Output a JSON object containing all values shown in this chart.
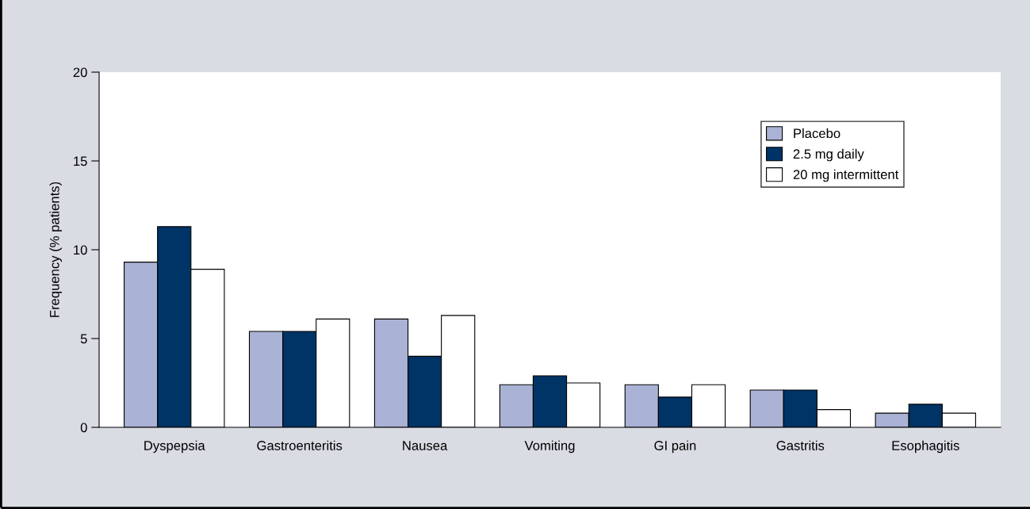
{
  "chart_data": {
    "type": "bar",
    "ylabel": "Frequency (% patients)",
    "categories": [
      "Dyspepsia",
      "Gastroenteritis",
      "Nausea",
      "Vomiting",
      "GI pain",
      "Gastritis",
      "Esophagitis"
    ],
    "series": [
      {
        "name": "Placebo",
        "color": "#aab3d5",
        "values": [
          9.3,
          5.4,
          6.1,
          2.4,
          2.4,
          2.1,
          0.8
        ]
      },
      {
        "name": "2.5 mg daily",
        "color": "#003366",
        "values": [
          11.3,
          5.4,
          4.0,
          2.9,
          1.7,
          2.1,
          1.3
        ]
      },
      {
        "name": "20 mg intermittent",
        "color": "#ffffff",
        "values": [
          8.9,
          6.1,
          6.3,
          2.5,
          2.4,
          1.0,
          0.8
        ]
      }
    ],
    "ylim": [
      0,
      20
    ],
    "yticks": [
      0,
      5,
      10,
      15,
      20
    ],
    "grid": false,
    "legend": "top right"
  }
}
